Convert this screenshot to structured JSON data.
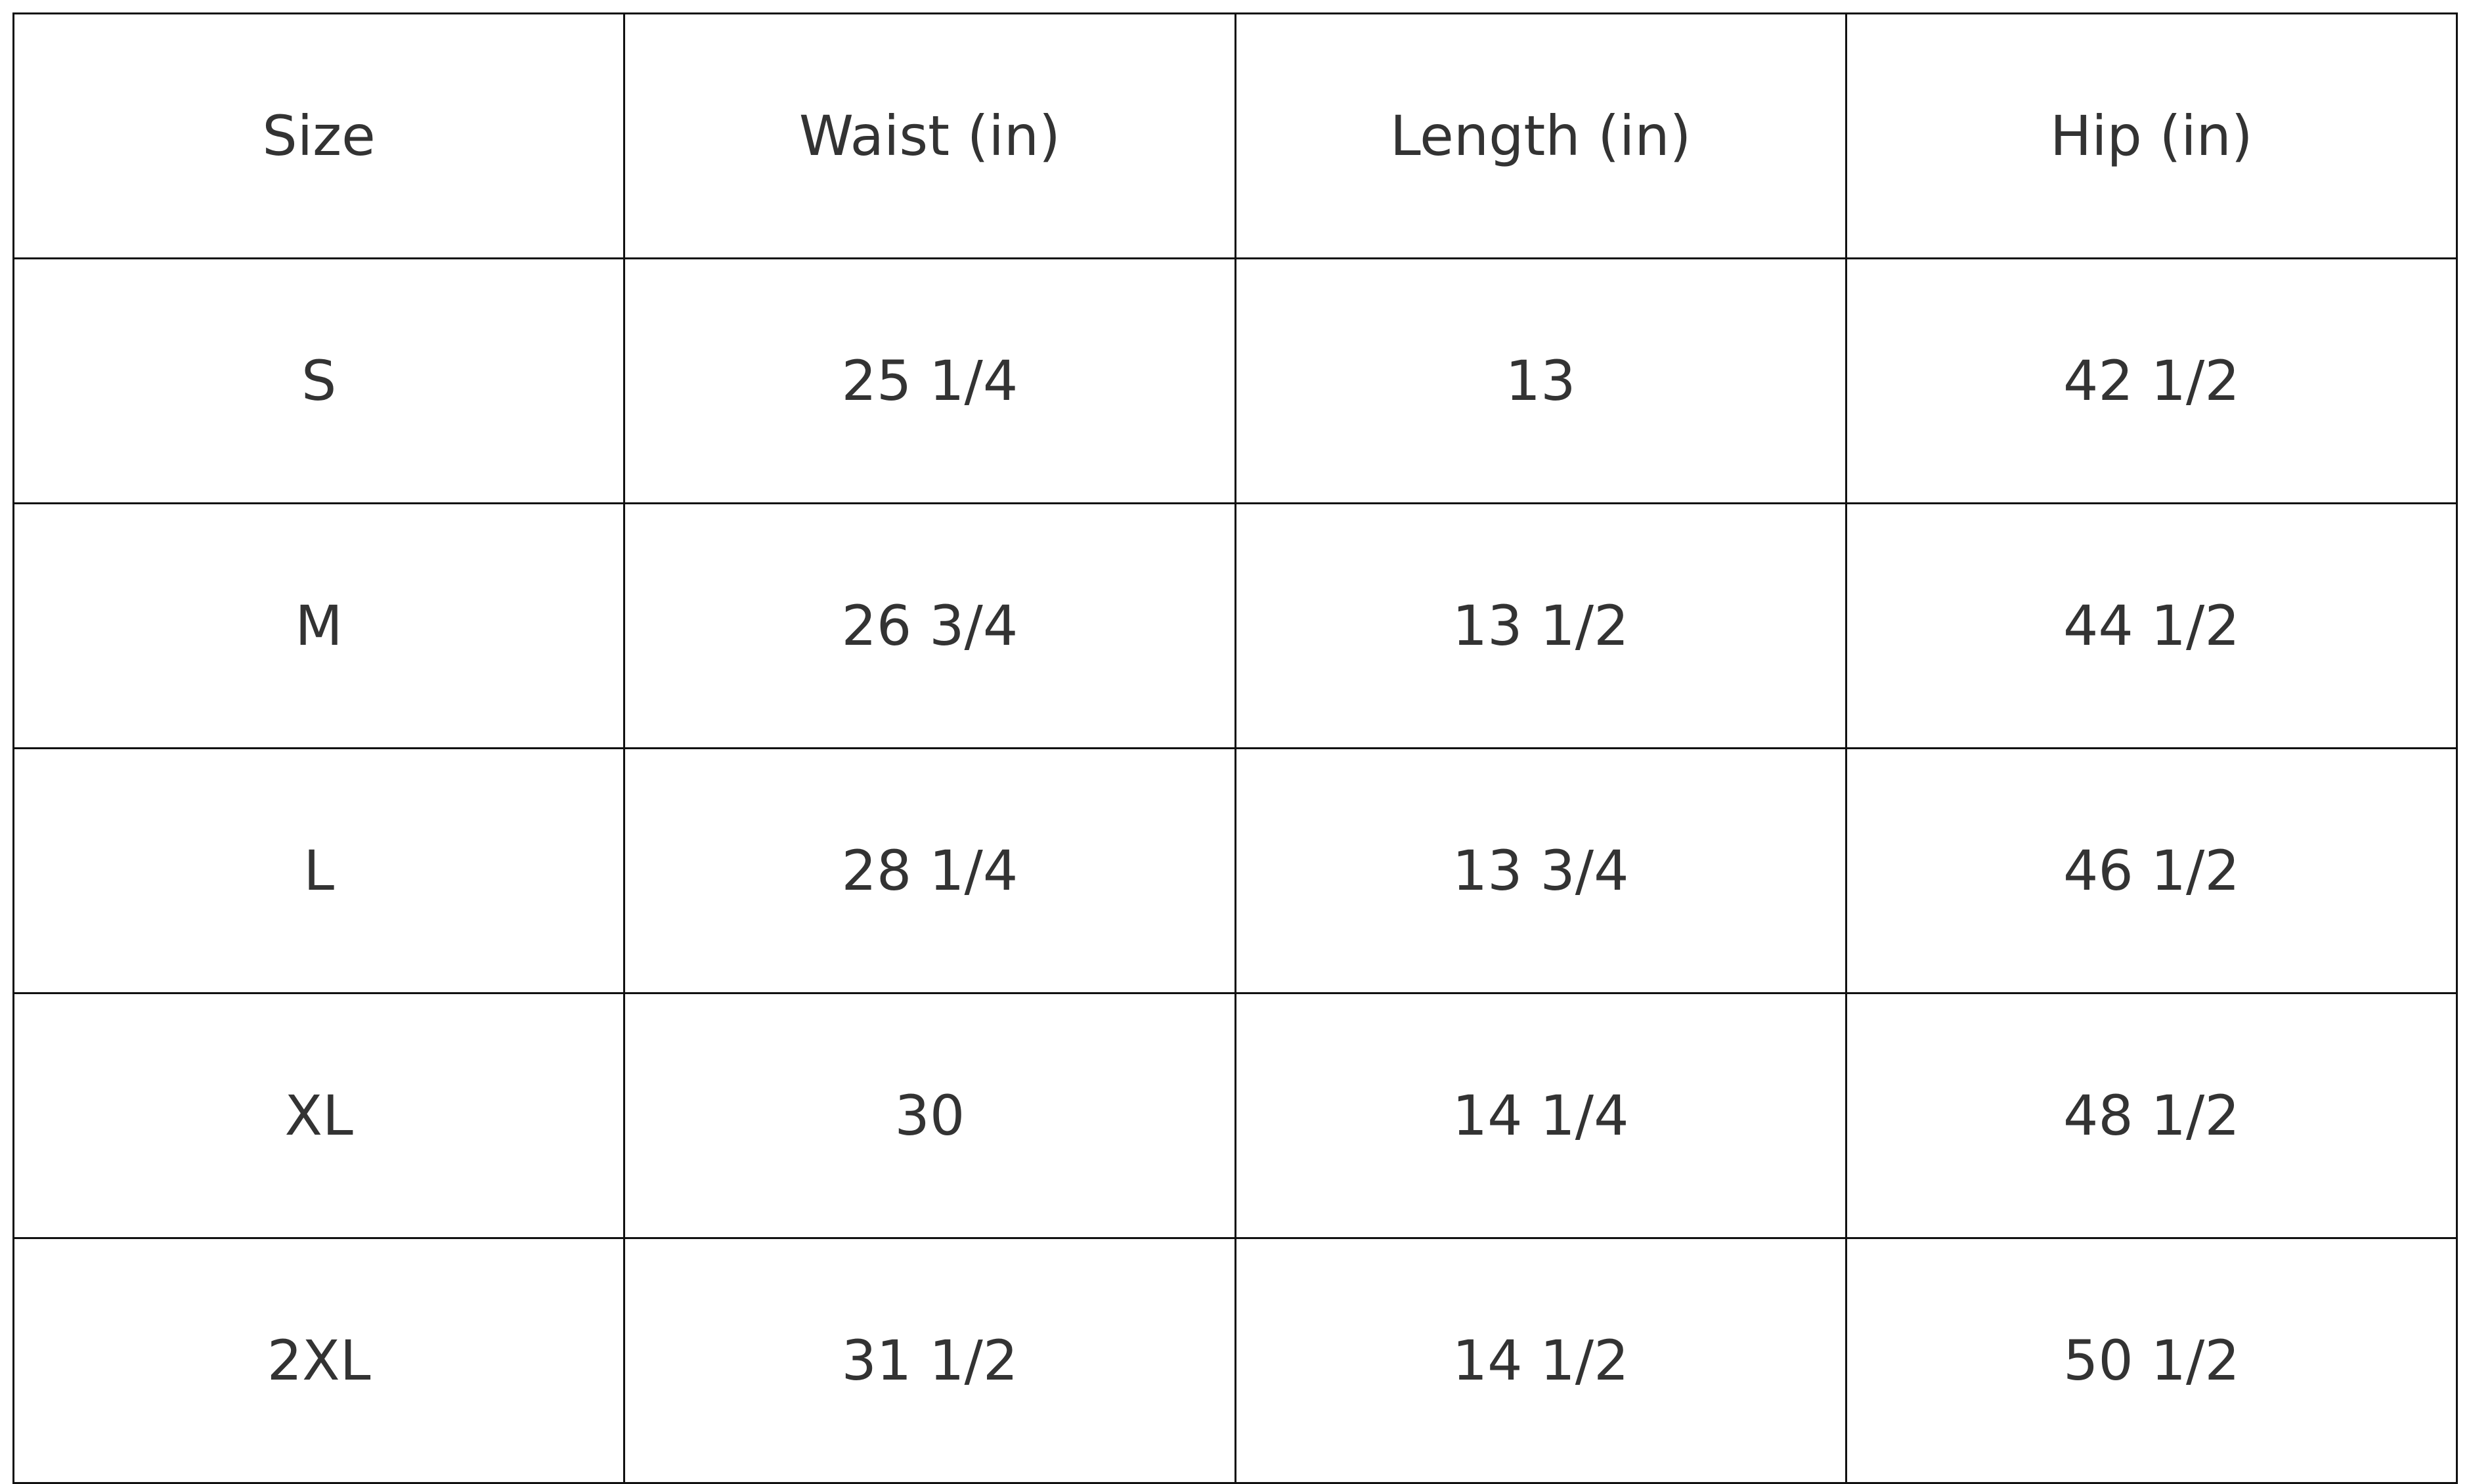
{
  "table": {
    "headers": [
      "Size",
      "Waist (in)",
      "Length (in)",
      "Hip (in)"
    ],
    "rows": [
      [
        "S",
        "25 1/4",
        "13",
        "42 1/2"
      ],
      [
        "M",
        "26 3/4",
        "13 1/2",
        "44 1/2"
      ],
      [
        "L",
        "28 1/4",
        "13 3/4",
        "46 1/2"
      ],
      [
        "XL",
        "30",
        "14 1/4",
        "48 1/2"
      ],
      [
        "2XL",
        "31 1/2",
        "14 1/2",
        "50 1/2"
      ]
    ]
  }
}
